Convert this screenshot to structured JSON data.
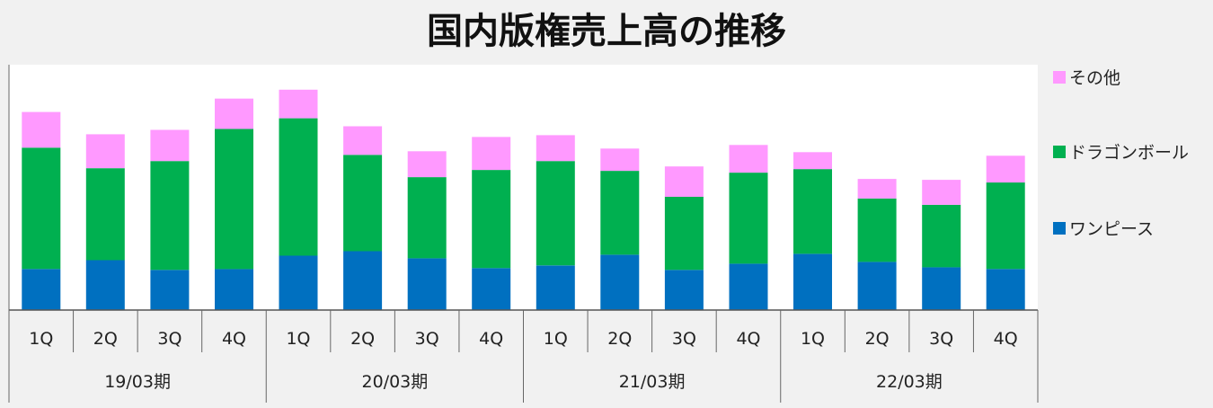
{
  "chart_data": {
    "type": "bar",
    "stacked": true,
    "title": "国内版権売上高の推移",
    "categories": [
      "1Q",
      "2Q",
      "3Q",
      "4Q",
      "1Q",
      "2Q",
      "3Q",
      "4Q",
      "1Q",
      "2Q",
      "3Q",
      "4Q",
      "1Q",
      "2Q",
      "3Q",
      "4Q"
    ],
    "groups": [
      {
        "label": "19/03期",
        "count": 4
      },
      {
        "label": "20/03期",
        "count": 4
      },
      {
        "label": "21/03期",
        "count": 4
      },
      {
        "label": "22/03期",
        "count": 4
      }
    ],
    "series": [
      {
        "name": "ワンピース",
        "color": "#0070c0",
        "values": [
          46,
          56,
          45,
          46,
          61,
          66,
          58,
          47,
          50,
          62,
          45,
          52,
          63,
          54,
          48,
          46
        ]
      },
      {
        "name": "ドラゴンボール",
        "color": "#00b050",
        "values": [
          136,
          103,
          122,
          157,
          154,
          108,
          91,
          110,
          117,
          94,
          82,
          102,
          95,
          71,
          70,
          97
        ]
      },
      {
        "name": "その他",
        "color": "#ff99ff",
        "values": [
          40,
          38,
          35,
          34,
          32,
          32,
          29,
          37,
          29,
          25,
          34,
          31,
          19,
          22,
          28,
          30
        ]
      }
    ],
    "ylim": [
      0,
      275
    ],
    "legend_position": "right",
    "grid": false
  }
}
